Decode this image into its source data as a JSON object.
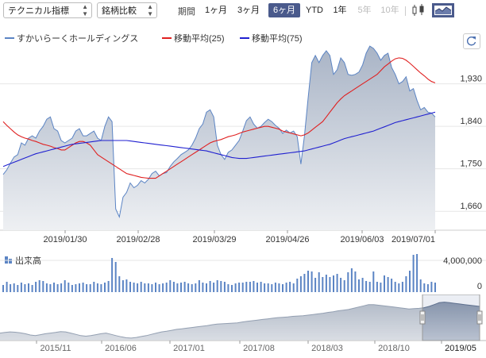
{
  "toolbar": {
    "indicator_select": "テクニカル指標",
    "compare_select": "銘柄比較",
    "period_label": "期間",
    "periods": [
      {
        "label": "1ヶ月",
        "state": "normal"
      },
      {
        "label": "3ヶ月",
        "state": "normal"
      },
      {
        "label": "6ヶ月",
        "state": "active"
      },
      {
        "label": "YTD",
        "state": "normal"
      },
      {
        "label": "1年",
        "state": "normal"
      },
      {
        "label": "5年",
        "state": "disabled"
      },
      {
        "label": "10年",
        "state": "disabled"
      }
    ],
    "chart_type_icons": [
      "candlestick-icon",
      "area-chart-icon"
    ],
    "accent_color": "#4a5a8c"
  },
  "legend": [
    {
      "label": "すかいらーくホールディングス",
      "color": "#5b84c4"
    },
    {
      "label": "移動平均(25)",
      "color": "#e02020"
    },
    {
      "label": "移動平均(75)",
      "color": "#2020d0"
    }
  ],
  "refresh_icon": "refresh-icon",
  "volume_label": "出来高",
  "chart_data": [
    {
      "type": "area",
      "x_ticks": [
        "2019/01/30",
        "2019/02/28",
        "2019/03/29",
        "2019/04/26",
        "2019/06/03",
        "2019/07/01"
      ],
      "ylim": [
        1620,
        2000
      ],
      "yticks": [
        1660,
        1750,
        1840,
        1930
      ],
      "ytick_labels": [
        "1,660",
        "1,750",
        "1,840",
        "1,930"
      ],
      "grid": true,
      "series": [
        {
          "name": "すかいらーくホールディングス",
          "color": "#5b84c4",
          "values": [
            1738,
            1748,
            1762,
            1775,
            1780,
            1805,
            1800,
            1815,
            1820,
            1815,
            1830,
            1840,
            1855,
            1860,
            1835,
            1830,
            1810,
            1805,
            1810,
            1815,
            1830,
            1835,
            1820,
            1820,
            1825,
            1830,
            1815,
            1810,
            1840,
            1860,
            1850,
            1665,
            1648,
            1690,
            1700,
            1720,
            1710,
            1715,
            1725,
            1720,
            1728,
            1740,
            1745,
            1735,
            1740,
            1742,
            1755,
            1765,
            1772,
            1780,
            1785,
            1790,
            1800,
            1815,
            1835,
            1845,
            1870,
            1875,
            1860,
            1800,
            1780,
            1770,
            1785,
            1790,
            1800,
            1810,
            1830,
            1852,
            1860,
            1845,
            1836,
            1840,
            1848,
            1855,
            1850,
            1842,
            1836,
            1825,
            1832,
            1826,
            1830,
            1818,
            1760,
            1820,
            1900,
            1975,
            1990,
            1975,
            1990,
            2000,
            1990,
            1950,
            1960,
            1985,
            1975,
            1950,
            1948,
            1950,
            1955,
            1970,
            1995,
            2010,
            2005,
            1995,
            1980,
            1990,
            1995,
            1965,
            1950,
            1930,
            1935,
            1945,
            1915,
            1920,
            1895,
            1875,
            1880,
            1870,
            1868,
            1860
          ]
        },
        {
          "name": "移動平均(25)",
          "color": "#e02020",
          "values": [
            1850,
            1842,
            1835,
            1828,
            1822,
            1818,
            1815,
            1813,
            1810,
            1808,
            1805,
            1802,
            1800,
            1798,
            1795,
            1793,
            1790,
            1790,
            1795,
            1800,
            1805,
            1808,
            1808,
            1805,
            1800,
            1790,
            1780,
            1775,
            1770,
            1765,
            1760,
            1755,
            1750,
            1745,
            1740,
            1738,
            1736,
            1734,
            1732,
            1731,
            1730,
            1730,
            1730,
            1735,
            1740,
            1745,
            1750,
            1755,
            1760,
            1765,
            1770,
            1775,
            1780,
            1785,
            1790,
            1795,
            1800,
            1805,
            1808,
            1810,
            1812,
            1815,
            1818,
            1820,
            1822,
            1825,
            1828,
            1830,
            1832,
            1834,
            1836,
            1838,
            1840,
            1840,
            1838,
            1836,
            1834,
            1830,
            1828,
            1826,
            1824,
            1822,
            1820,
            1822,
            1826,
            1832,
            1838,
            1844,
            1850,
            1860,
            1870,
            1880,
            1890,
            1898,
            1905,
            1910,
            1915,
            1920,
            1925,
            1930,
            1935,
            1940,
            1945,
            1950,
            1958,
            1966,
            1972,
            1978,
            1983,
            1985,
            1984,
            1980,
            1974,
            1967,
            1960,
            1953,
            1947,
            1940,
            1935,
            1932
          ]
        },
        {
          "name": "移動平均(75)",
          "color": "#2020d0",
          "values": [
            1755,
            1758,
            1761,
            1764,
            1767,
            1770,
            1773,
            1776,
            1779,
            1782,
            1784,
            1786,
            1788,
            1790,
            1792,
            1794,
            1796,
            1798,
            1800,
            1802,
            1803,
            1804,
            1805,
            1806,
            1807,
            1808,
            1809,
            1810,
            1810,
            1810,
            1810,
            1810,
            1810,
            1810,
            1810,
            1809,
            1808,
            1807,
            1806,
            1805,
            1804,
            1803,
            1802,
            1801,
            1800,
            1799,
            1798,
            1797,
            1796,
            1795,
            1794,
            1793,
            1792,
            1791,
            1790,
            1789,
            1788,
            1786,
            1784,
            1782,
            1780,
            1778,
            1776,
            1774,
            1773,
            1772,
            1772,
            1772,
            1773,
            1774,
            1775,
            1776,
            1777,
            1778,
            1779,
            1780,
            1781,
            1782,
            1783,
            1784,
            1785,
            1786,
            1787,
            1788,
            1790,
            1792,
            1794,
            1796,
            1798,
            1800,
            1802,
            1805,
            1808,
            1811,
            1814,
            1816,
            1818,
            1820,
            1822,
            1824,
            1826,
            1828,
            1830,
            1833,
            1836,
            1839,
            1842,
            1845,
            1848,
            1850,
            1852,
            1854,
            1856,
            1858,
            1860,
            1862,
            1864,
            1866,
            1868,
            1870
          ]
        }
      ]
    },
    {
      "type": "bar",
      "title": "出来高",
      "ylim": [
        0,
        4800000
      ],
      "ytick_labels": [
        "4,000,000",
        "0"
      ],
      "values": [
        900000,
        1300000,
        1000000,
        1100000,
        900000,
        1200000,
        1000000,
        1100000,
        900000,
        1300000,
        1500000,
        1400000,
        1100000,
        1000000,
        1200000,
        1000000,
        1100000,
        1500000,
        1200000,
        900000,
        1000000,
        1100000,
        1200000,
        1000000,
        1000000,
        1300000,
        1100000,
        1000000,
        1200000,
        1400000,
        4300000,
        3800000,
        2000000,
        1500000,
        1600000,
        1300000,
        1200000,
        1100000,
        1300000,
        1100000,
        1100000,
        1000000,
        1200000,
        1000000,
        1100000,
        1200000,
        1500000,
        1300000,
        1100000,
        1200000,
        1300000,
        1100000,
        1000000,
        1100000,
        1500000,
        1200000,
        1100000,
        1400000,
        1200000,
        1500000,
        1400000,
        1300000,
        1000000,
        900000,
        1100000,
        1200000,
        1200000,
        1300000,
        1300000,
        1400000,
        1200000,
        1300000,
        1100000,
        1100000,
        1000000,
        1200000,
        1100000,
        1000000,
        1200000,
        1300000,
        1100000,
        1700000,
        2000000,
        2300000,
        2700000,
        2600000,
        1800000,
        2500000,
        1900000,
        2200000,
        1900000,
        2100000,
        2300000,
        1800000,
        1500000,
        2500000,
        3000000,
        2600000,
        1600000,
        1800000,
        1400000,
        1300000,
        2600000,
        1300000,
        1200000,
        2100000,
        1900000,
        1700000,
        1300000,
        1100000,
        1300000,
        2000000,
        2700000,
        4700000,
        4800000,
        1600000,
        1100000,
        1000000,
        1300000,
        1200000
      ]
    },
    {
      "type": "area",
      "title": "navigator",
      "x_ticks": [
        "2015/11",
        "2016/06",
        "2017/01",
        "2017/08",
        "2018/03",
        "2018/10",
        "2019/05"
      ],
      "values": [
        1420,
        1430,
        1440,
        1435,
        1425,
        1410,
        1390,
        1380,
        1395,
        1410,
        1420,
        1430,
        1445,
        1440,
        1420,
        1400,
        1380,
        1370,
        1380,
        1395,
        1410,
        1420,
        1400,
        1380,
        1360,
        1345,
        1340,
        1350,
        1365,
        1380,
        1400,
        1420,
        1440,
        1450,
        1465,
        1480,
        1490,
        1500,
        1510,
        1520,
        1530,
        1540,
        1555,
        1565,
        1570,
        1575,
        1580,
        1585,
        1600,
        1610,
        1620,
        1630,
        1640,
        1650,
        1660,
        1670,
        1675,
        1680,
        1690,
        1695,
        1700,
        1710,
        1720,
        1730,
        1740,
        1755,
        1765,
        1780,
        1790,
        1800,
        1820,
        1840,
        1860,
        1880,
        1880,
        1870,
        1860,
        1850,
        1840,
        1830,
        1820,
        1810,
        1815,
        1820,
        1830,
        1850,
        1880,
        1910,
        1920,
        1910,
        1900,
        1890,
        1880,
        1870,
        1860,
        1850
      ],
      "selected_range_label": "2019/05"
    }
  ]
}
